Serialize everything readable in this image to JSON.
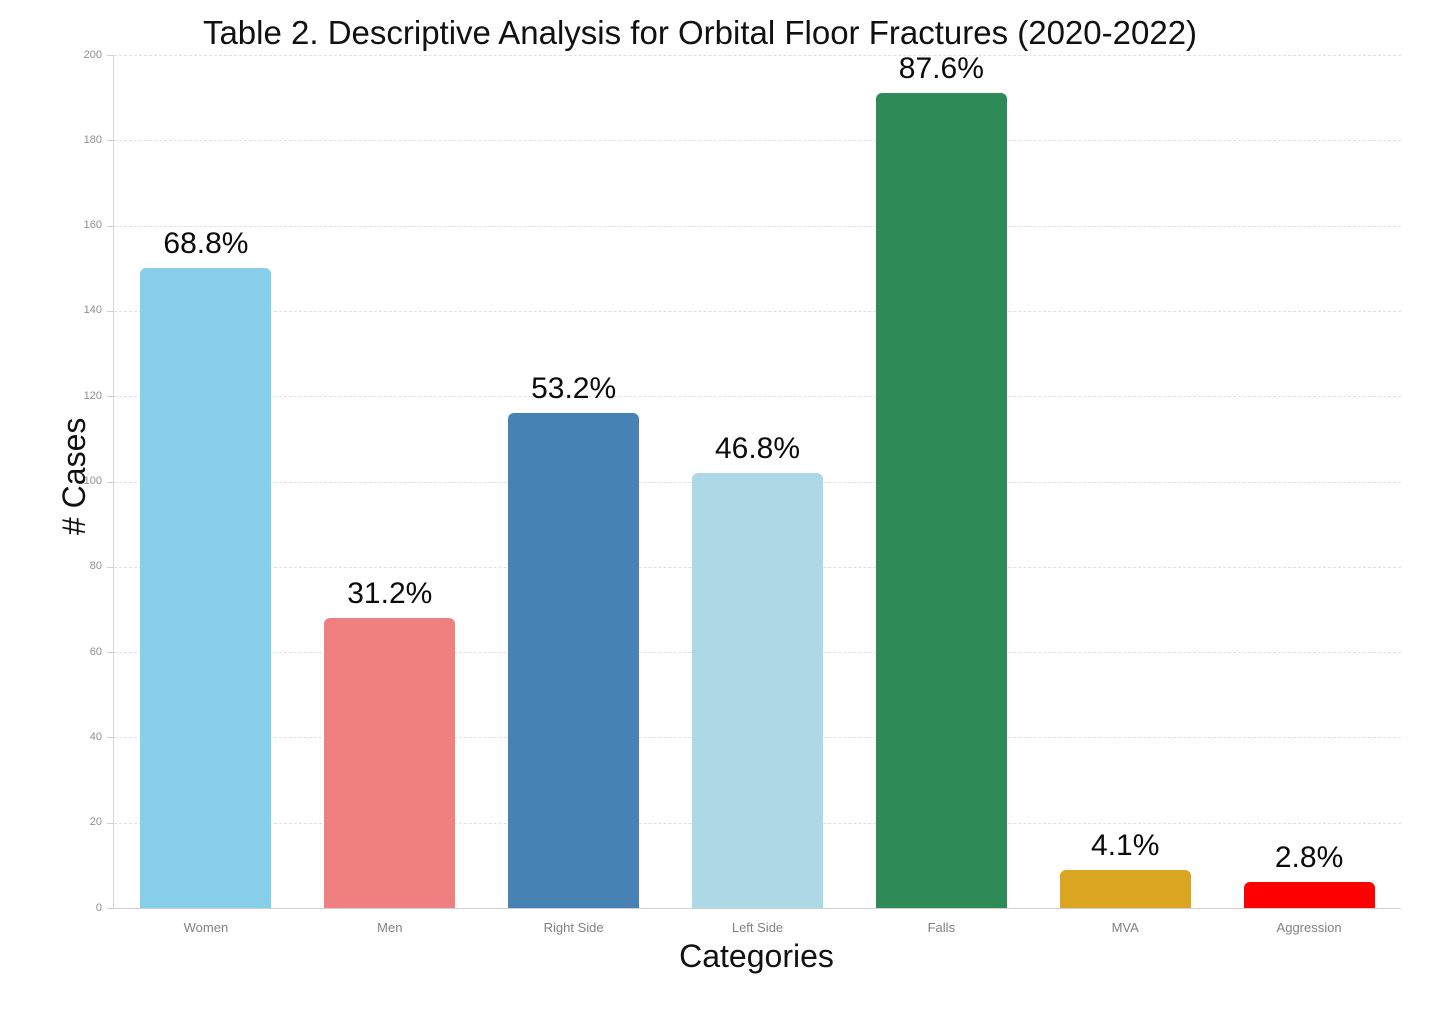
{
  "chart_data": {
    "type": "bar",
    "title": "Table 2. Descriptive Analysis for Orbital Floor Fractures (2020-2022)",
    "xlabel": "Categories",
    "ylabel": "# Cases",
    "categories": [
      "Women",
      "Men",
      "Right Side",
      "Left Side",
      "Falls",
      "MVA",
      "Aggression"
    ],
    "values": [
      150,
      68,
      116,
      102,
      191,
      9,
      6
    ],
    "bar_labels": [
      "68.8%",
      "31.2%",
      "53.2%",
      "46.8%",
      "87.6%",
      "4.1%",
      "2.8%"
    ],
    "bar_colors": [
      "#87CEEB",
      "#F08080",
      "#4682B4",
      "#ADD8E6",
      "#2E8B57",
      "#DAA520",
      "#FF0000"
    ],
    "ylim": [
      0,
      200
    ],
    "yticks": [
      0,
      20,
      40,
      60,
      80,
      100,
      120,
      140,
      160,
      180,
      200
    ],
    "grid": "horizontal-dashed",
    "legend": "none"
  },
  "style": {
    "grid_color": "#e0e0e0",
    "axis_color": "#d0d0d0",
    "tick_label_color": "#8e8e8e",
    "bar_label_color": "#0b0b0b",
    "background": "#ffffff"
  }
}
